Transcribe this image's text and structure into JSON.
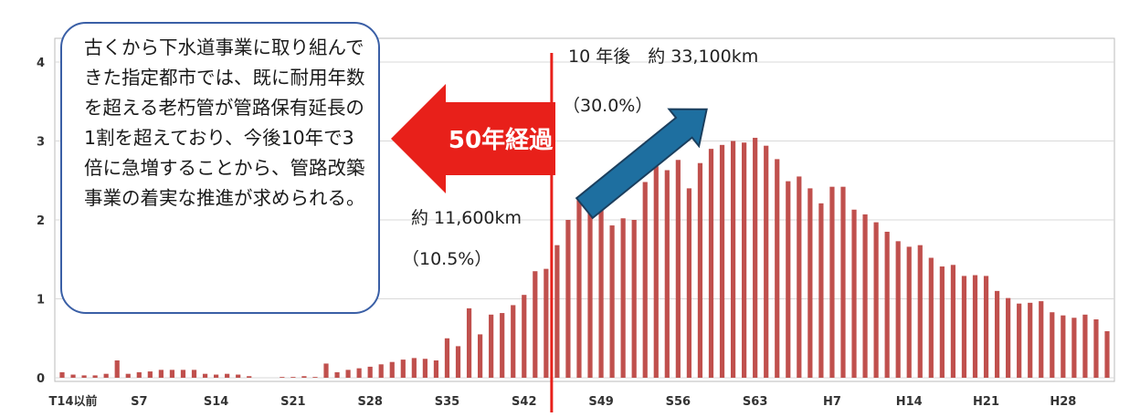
{
  "callout": {
    "text": "古くから下水道事業に取り組んできた指定都市では、既に耐用年数を超える老朽管が管路保有延長の1割を超えており、今後10年で3倍に急増することから、管路改築事業の着実な推進が求められる。"
  },
  "annotations": {
    "now_length": "約 11,600km",
    "now_pct": "（10.5%）",
    "future_length": "10 年後　約 33,100km",
    "future_pct": "（30.0%）",
    "arrow_label": "50年経過"
  },
  "colors": {
    "bar": "#c0504d",
    "marker": "#e8201a",
    "arrow_left": "#e8201a",
    "arrow_up": "#1e6fa0",
    "callout_border": "#3a5fa6"
  },
  "chart_data": {
    "type": "bar",
    "ylim": [
      0,
      4
    ],
    "yticks": [
      "0",
      "1",
      "2",
      "3",
      "4"
    ],
    "x_tick_labels": [
      "T14以前",
      "S7",
      "S14",
      "S21",
      "S28",
      "S35",
      "S42",
      "S49",
      "S56",
      "S63",
      "H7",
      "H14",
      "H21",
      "H28"
    ],
    "x_tick_index": [
      1,
      7,
      14,
      21,
      28,
      35,
      42,
      49,
      56,
      63,
      70,
      77,
      84,
      91
    ],
    "marker_index": 44.5,
    "grid": true,
    "values": [
      0.07,
      0.04,
      0.03,
      0.03,
      0.05,
      0.22,
      0.05,
      0.07,
      0.08,
      0.1,
      0.1,
      0.1,
      0.1,
      0.05,
      0.04,
      0.05,
      0.04,
      0.02,
      0.0,
      0.0,
      0.01,
      0.01,
      0.02,
      0.01,
      0.18,
      0.07,
      0.1,
      0.12,
      0.14,
      0.17,
      0.2,
      0.23,
      0.25,
      0.24,
      0.22,
      0.5,
      0.4,
      0.88,
      0.55,
      0.8,
      0.82,
      0.92,
      1.05,
      1.35,
      1.38,
      1.68,
      2.0,
      2.25,
      2.22,
      2.36,
      1.93,
      2.02,
      2.0,
      2.48,
      2.68,
      2.63,
      2.76,
      2.4,
      2.72,
      2.9,
      2.95,
      3.0,
      2.98,
      3.04,
      2.94,
      2.77,
      2.49,
      2.55,
      2.4,
      2.21,
      2.42,
      2.42,
      2.13,
      2.07,
      1.97,
      1.85,
      1.73,
      1.66,
      1.68,
      1.52,
      1.41,
      1.43,
      1.29,
      1.3,
      1.29,
      1.1,
      1.01,
      0.94,
      0.95,
      0.97,
      0.83,
      0.79,
      0.76,
      0.8,
      0.74,
      0.59
    ]
  }
}
